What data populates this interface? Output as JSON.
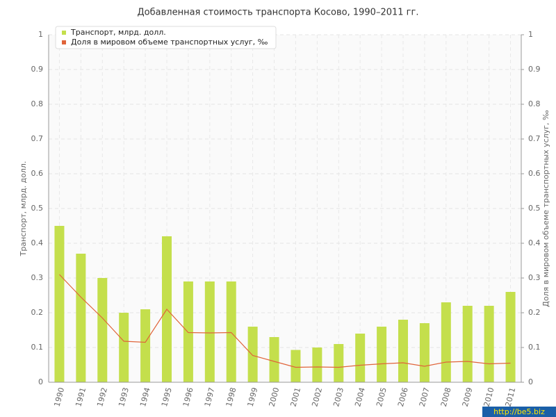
{
  "chart_data": {
    "type": "bar_line",
    "title": "Добавленная стоимость транспорта Косово, 1990–2011 гг.",
    "y_label": "Транспорт, млрд. долл.",
    "y2_label": "Доля в мировом объеме транспортных услуг, ‰",
    "categories": [
      "1990",
      "1991",
      "1992",
      "1993",
      "1994",
      "1995",
      "1996",
      "1997",
      "1998",
      "1999",
      "2000",
      "2001",
      "2002",
      "2003",
      "2004",
      "2005",
      "2006",
      "2007",
      "2008",
      "2009",
      "2010",
      "2011"
    ],
    "series": [
      {
        "name": "Транспорт, млрд. долл.",
        "color": "#c4df4c",
        "type": "bar",
        "values": [
          0.45,
          0.37,
          0.3,
          0.2,
          0.21,
          0.42,
          0.29,
          0.29,
          0.29,
          0.16,
          0.13,
          0.093,
          0.1,
          0.11,
          0.14,
          0.16,
          0.18,
          0.17,
          0.23,
          0.22,
          0.22,
          0.26
        ]
      },
      {
        "name": "Доля в мировом объеме транспортных услуг, ‰",
        "color": "#e0643a",
        "type": "line",
        "axis": "y2",
        "values": [
          0.31,
          0.245,
          0.185,
          0.118,
          0.115,
          0.21,
          0.143,
          0.142,
          0.143,
          0.077,
          0.06,
          0.043,
          0.044,
          0.043,
          0.049,
          0.053,
          0.056,
          0.046,
          0.058,
          0.06,
          0.053,
          0.055
        ]
      }
    ],
    "ylim": [
      0,
      1
    ],
    "yticks": [
      0,
      0.1,
      0.2,
      0.3,
      0.4,
      0.5,
      0.6,
      0.7,
      0.8,
      0.9,
      1
    ],
    "y2lim": [
      0,
      1
    ],
    "y2ticks": [
      0,
      0.1,
      0.2,
      0.3,
      0.4,
      0.5,
      0.6,
      0.7,
      0.8,
      0.9,
      1
    ],
    "grid": true,
    "legend": "top-left",
    "watermark": "http://be5.biz"
  }
}
